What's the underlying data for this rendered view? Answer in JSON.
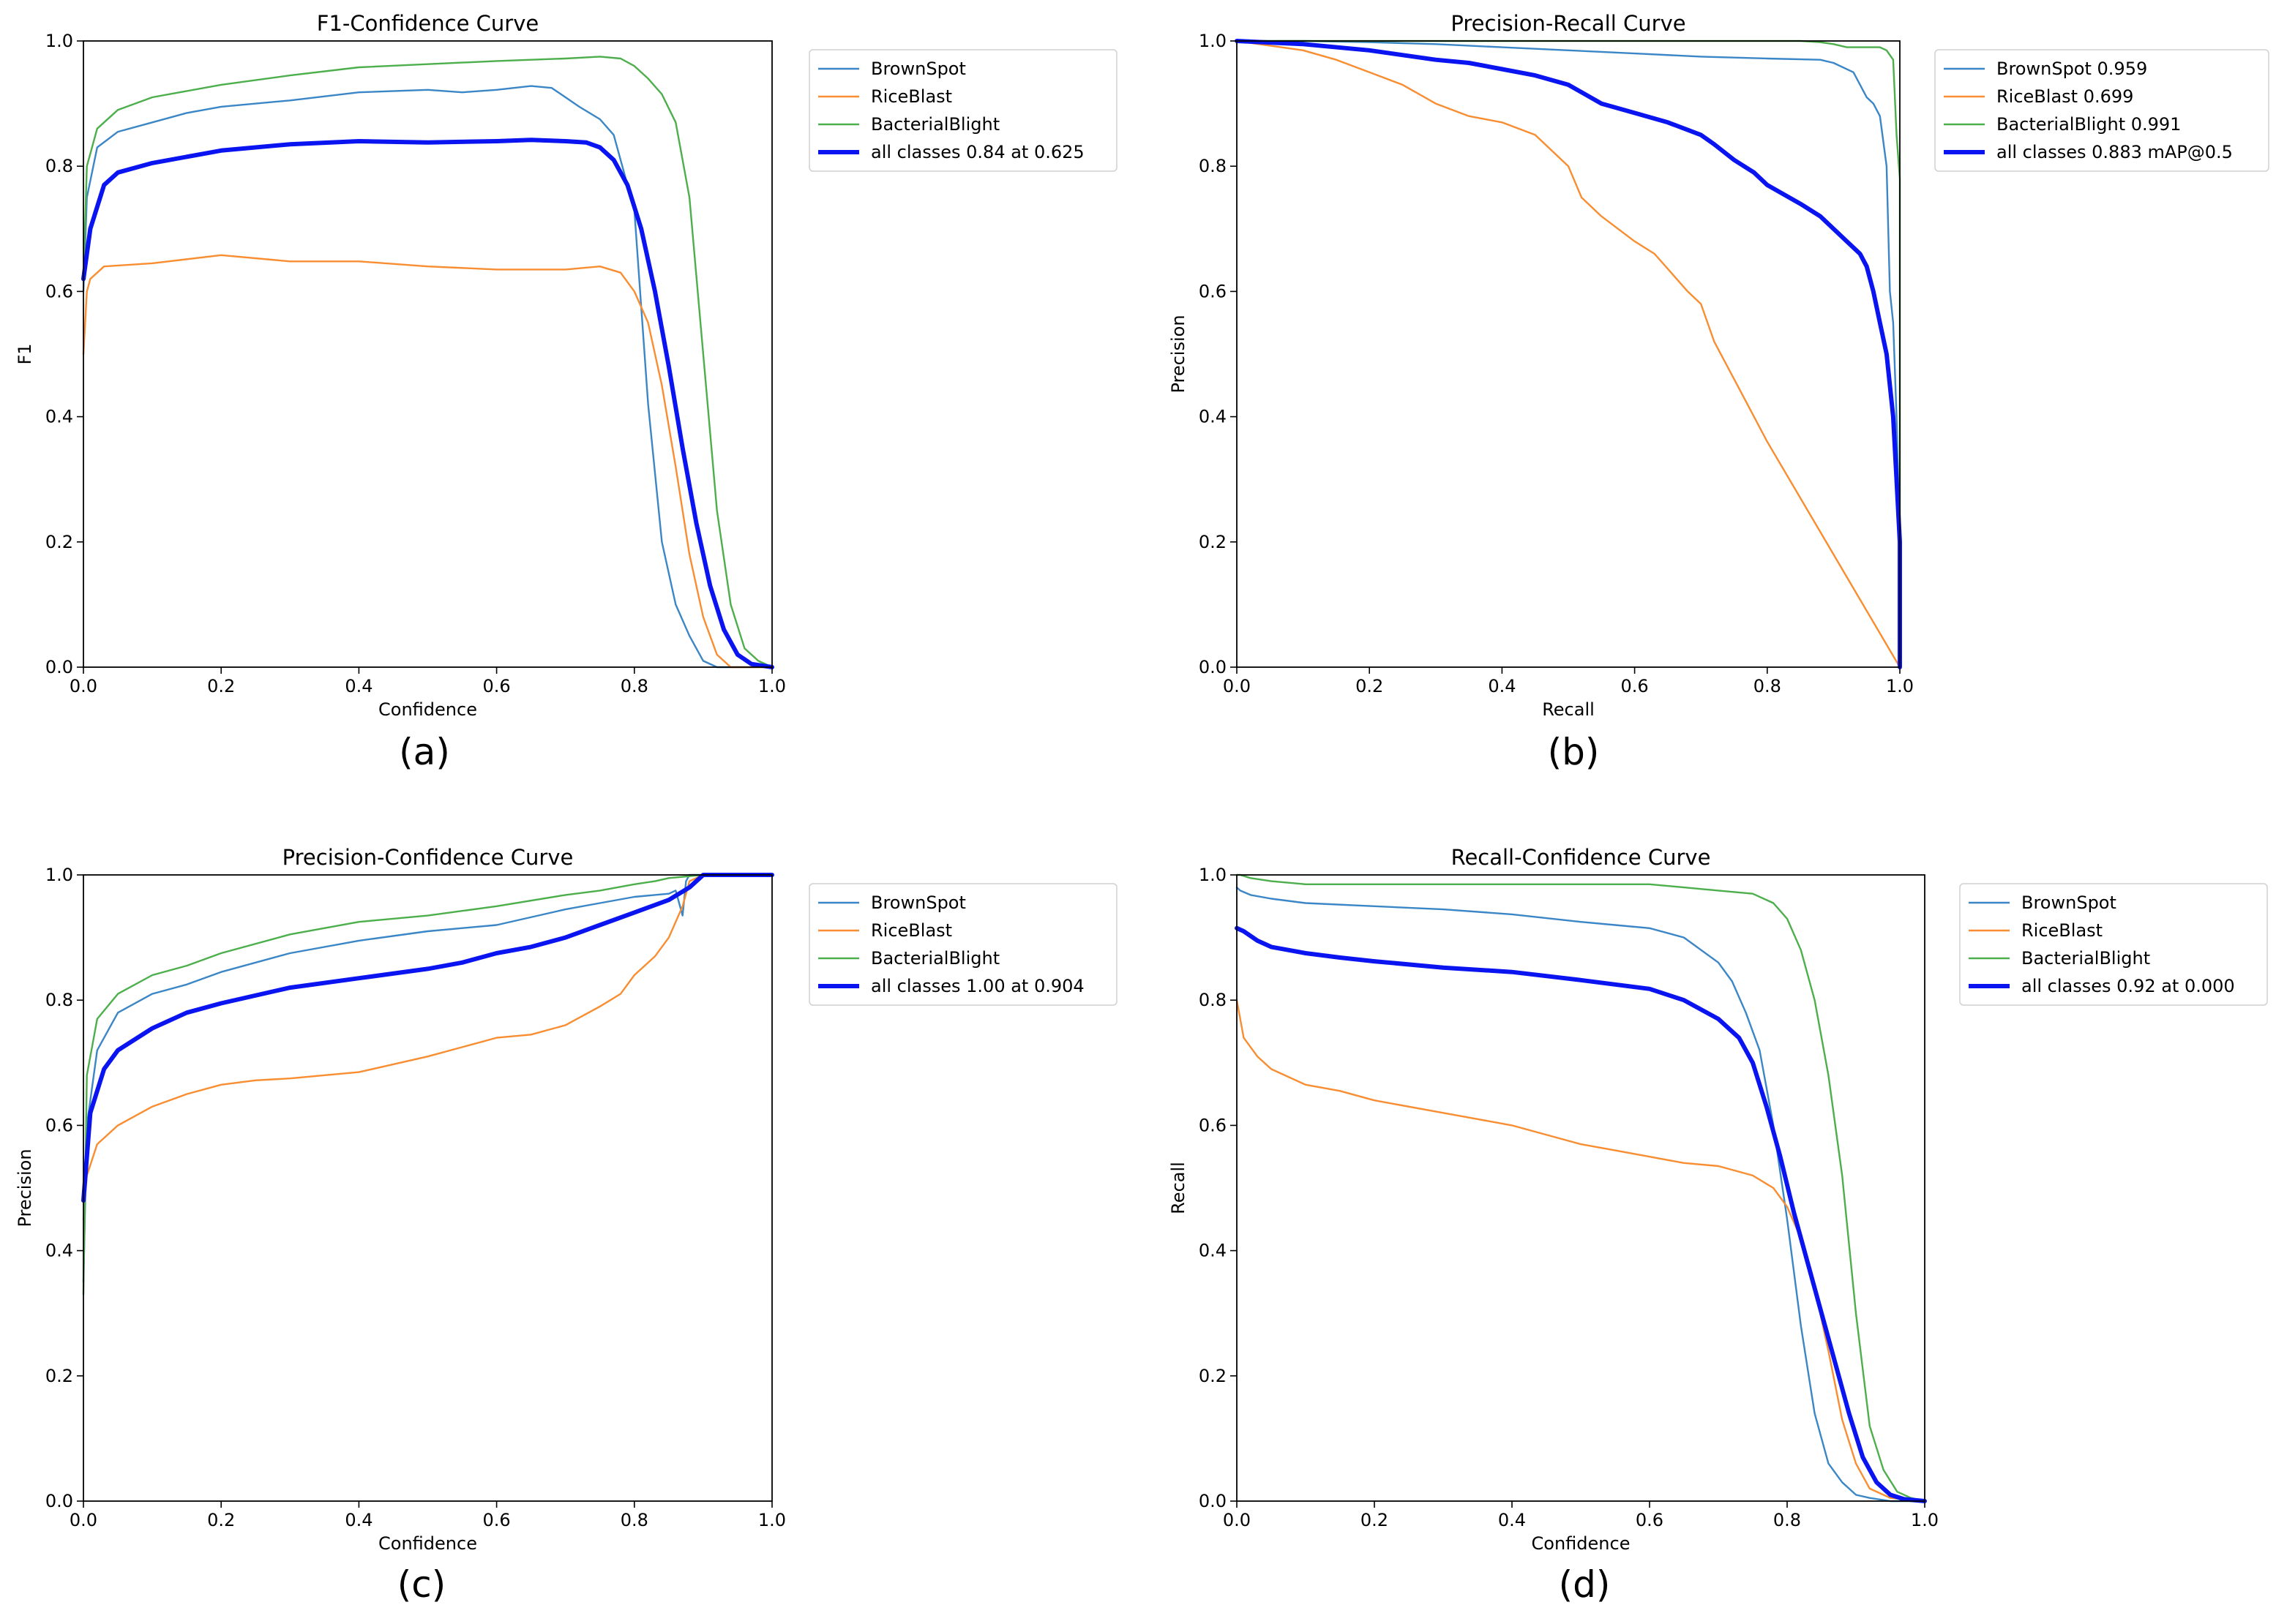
{
  "figure": {
    "legend_prefix": "all classes"
  },
  "colors": {
    "BrownSpot": "#3b86c6",
    "RiceBlast": "#f88d31",
    "BacterialBlight": "#4caf4c",
    "all_classes": "#0a14f0",
    "axis": "#000000"
  },
  "chart_data": [
    {
      "type": "line",
      "panel_label": "(a)",
      "title": "F1-Confidence Curve",
      "xlabel": "Confidence",
      "ylabel": "F1",
      "xlim": [
        0,
        1
      ],
      "ylim": [
        0,
        1
      ],
      "xticks": [
        "0.0",
        "0.2",
        "0.4",
        "0.6",
        "0.8",
        "1.0"
      ],
      "yticks": [
        "0.0",
        "0.2",
        "0.4",
        "0.6",
        "0.8",
        "1.0"
      ],
      "legend_position": "outside-right",
      "series": [
        {
          "name": "BrownSpot",
          "legend": "BrownSpot",
          "color_key": "BrownSpot",
          "x": [
            0,
            0.005,
            0.02,
            0.05,
            0.1,
            0.15,
            0.2,
            0.3,
            0.4,
            0.5,
            0.55,
            0.6,
            0.65,
            0.68,
            0.7,
            0.72,
            0.75,
            0.77,
            0.8,
            0.82,
            0.84,
            0.86,
            0.88,
            0.9,
            0.92,
            0.95,
            1.0
          ],
          "y": [
            0.6,
            0.75,
            0.83,
            0.855,
            0.87,
            0.885,
            0.895,
            0.905,
            0.918,
            0.922,
            0.918,
            0.922,
            0.928,
            0.925,
            0.91,
            0.895,
            0.875,
            0.85,
            0.73,
            0.42,
            0.2,
            0.1,
            0.05,
            0.01,
            0.0,
            0.0,
            0.0
          ]
        },
        {
          "name": "RiceBlast",
          "legend": "RiceBlast",
          "color_key": "RiceBlast",
          "x": [
            0,
            0.005,
            0.01,
            0.03,
            0.1,
            0.2,
            0.3,
            0.4,
            0.5,
            0.6,
            0.7,
            0.75,
            0.78,
            0.8,
            0.82,
            0.84,
            0.86,
            0.88,
            0.9,
            0.92,
            0.94,
            0.95,
            1.0
          ],
          "y": [
            0.5,
            0.6,
            0.62,
            0.64,
            0.645,
            0.658,
            0.648,
            0.648,
            0.64,
            0.635,
            0.635,
            0.64,
            0.63,
            0.6,
            0.55,
            0.45,
            0.32,
            0.18,
            0.08,
            0.02,
            0.0,
            0.0,
            0.0
          ]
        },
        {
          "name": "BacterialBlight",
          "legend": "BacterialBlight",
          "color_key": "BacterialBlight",
          "x": [
            0,
            0.005,
            0.02,
            0.05,
            0.1,
            0.2,
            0.3,
            0.4,
            0.5,
            0.6,
            0.65,
            0.7,
            0.75,
            0.78,
            0.8,
            0.82,
            0.84,
            0.86,
            0.88,
            0.9,
            0.92,
            0.94,
            0.96,
            0.98,
            1.0
          ],
          "y": [
            0.62,
            0.8,
            0.86,
            0.89,
            0.91,
            0.93,
            0.945,
            0.958,
            0.963,
            0.968,
            0.97,
            0.972,
            0.975,
            0.972,
            0.96,
            0.94,
            0.915,
            0.87,
            0.75,
            0.5,
            0.25,
            0.1,
            0.03,
            0.01,
            0.0
          ]
        },
        {
          "name": "all classes",
          "legend": "all classes 0.84 at 0.625",
          "color_key": "all_classes",
          "bold": true,
          "x": [
            0,
            0.01,
            0.03,
            0.05,
            0.1,
            0.2,
            0.3,
            0.4,
            0.5,
            0.6,
            0.65,
            0.7,
            0.73,
            0.75,
            0.77,
            0.79,
            0.81,
            0.83,
            0.85,
            0.87,
            0.89,
            0.91,
            0.93,
            0.95,
            0.97,
            1.0
          ],
          "y": [
            0.62,
            0.7,
            0.77,
            0.79,
            0.805,
            0.825,
            0.835,
            0.84,
            0.838,
            0.84,
            0.842,
            0.84,
            0.838,
            0.83,
            0.81,
            0.77,
            0.7,
            0.6,
            0.48,
            0.35,
            0.23,
            0.13,
            0.06,
            0.02,
            0.005,
            0.0
          ]
        }
      ]
    },
    {
      "type": "line",
      "panel_label": "(b)",
      "title": "Precision-Recall Curve",
      "xlabel": "Recall",
      "ylabel": "Precision",
      "xlim": [
        0,
        1
      ],
      "ylim": [
        0,
        1
      ],
      "xticks": [
        "0.0",
        "0.2",
        "0.4",
        "0.6",
        "0.8",
        "1.0"
      ],
      "yticks": [
        "0.0",
        "0.2",
        "0.4",
        "0.6",
        "0.8",
        "1.0"
      ],
      "legend_position": "outside-right",
      "series": [
        {
          "name": "BrownSpot",
          "legend": "BrownSpot 0.959",
          "color_key": "BrownSpot",
          "x": [
            0,
            0.1,
            0.2,
            0.3,
            0.4,
            0.5,
            0.6,
            0.7,
            0.8,
            0.88,
            0.9,
            0.93,
            0.95,
            0.96,
            0.97,
            0.98,
            0.985,
            0.99,
            0.995,
            1.0,
            1.0
          ],
          "y": [
            1.0,
            1.0,
            0.998,
            0.995,
            0.99,
            0.985,
            0.98,
            0.975,
            0.972,
            0.97,
            0.965,
            0.95,
            0.91,
            0.9,
            0.88,
            0.8,
            0.6,
            0.55,
            0.4,
            0.2,
            0.0
          ]
        },
        {
          "name": "RiceBlast",
          "legend": "RiceBlast 0.699",
          "color_key": "RiceBlast",
          "x": [
            0,
            0.1,
            0.15,
            0.2,
            0.25,
            0.3,
            0.35,
            0.4,
            0.45,
            0.5,
            0.52,
            0.55,
            0.6,
            0.63,
            0.68,
            0.7,
            0.72,
            0.75,
            0.78,
            0.8,
            0.9,
            1.0
          ],
          "y": [
            1.0,
            0.985,
            0.97,
            0.95,
            0.93,
            0.9,
            0.88,
            0.87,
            0.85,
            0.8,
            0.75,
            0.72,
            0.68,
            0.66,
            0.6,
            0.58,
            0.52,
            0.46,
            0.4,
            0.36,
            0.18,
            0.0
          ]
        },
        {
          "name": "BacterialBlight",
          "legend": "BacterialBlight 0.991",
          "color_key": "BacterialBlight",
          "x": [
            0,
            0.2,
            0.4,
            0.6,
            0.8,
            0.85,
            0.88,
            0.9,
            0.92,
            0.95,
            0.97,
            0.98,
            0.99,
            0.995,
            1.0,
            1.0
          ],
          "y": [
            1.0,
            1.0,
            1.0,
            1.0,
            1.0,
            1.0,
            0.998,
            0.995,
            0.99,
            0.99,
            0.99,
            0.985,
            0.97,
            0.85,
            0.78,
            0.0
          ]
        },
        {
          "name": "all classes",
          "legend": "all classes 0.883 mAP@0.5",
          "color_key": "all_classes",
          "bold": true,
          "x": [
            0,
            0.1,
            0.2,
            0.3,
            0.35,
            0.4,
            0.45,
            0.5,
            0.55,
            0.6,
            0.65,
            0.7,
            0.72,
            0.75,
            0.78,
            0.8,
            0.85,
            0.88,
            0.9,
            0.92,
            0.94,
            0.95,
            0.96,
            0.97,
            0.98,
            0.99,
            0.995,
            1.0,
            1.0
          ],
          "y": [
            1.0,
            0.995,
            0.985,
            0.97,
            0.965,
            0.955,
            0.945,
            0.93,
            0.9,
            0.885,
            0.87,
            0.85,
            0.835,
            0.81,
            0.79,
            0.77,
            0.74,
            0.72,
            0.7,
            0.68,
            0.66,
            0.64,
            0.6,
            0.55,
            0.5,
            0.4,
            0.3,
            0.2,
            0.0
          ]
        }
      ]
    },
    {
      "type": "line",
      "panel_label": "(c)",
      "title": "Precision-Confidence Curve",
      "xlabel": "Confidence",
      "ylabel": "Precision",
      "xlim": [
        0,
        1
      ],
      "ylim": [
        0,
        1
      ],
      "xticks": [
        "0.0",
        "0.2",
        "0.4",
        "0.6",
        "0.8",
        "1.0"
      ],
      "yticks": [
        "0.0",
        "0.2",
        "0.4",
        "0.6",
        "0.8",
        "1.0"
      ],
      "legend_position": "outside-right",
      "series": [
        {
          "name": "BrownSpot",
          "legend": "BrownSpot",
          "color_key": "BrownSpot",
          "x": [
            0,
            0.005,
            0.02,
            0.05,
            0.1,
            0.15,
            0.2,
            0.3,
            0.4,
            0.5,
            0.6,
            0.7,
            0.75,
            0.8,
            0.85,
            0.86,
            0.87,
            0.875,
            0.88,
            0.9,
            1.0
          ],
          "y": [
            0.35,
            0.6,
            0.72,
            0.78,
            0.81,
            0.825,
            0.845,
            0.875,
            0.895,
            0.91,
            0.92,
            0.945,
            0.955,
            0.965,
            0.97,
            0.975,
            0.935,
            0.99,
            1.0,
            1.0,
            1.0
          ]
        },
        {
          "name": "RiceBlast",
          "legend": "RiceBlast",
          "color_key": "RiceBlast",
          "x": [
            0,
            0.005,
            0.02,
            0.05,
            0.1,
            0.15,
            0.2,
            0.25,
            0.3,
            0.4,
            0.5,
            0.6,
            0.65,
            0.7,
            0.75,
            0.78,
            0.8,
            0.83,
            0.85,
            0.87,
            0.88,
            0.9,
            1.0
          ],
          "y": [
            0.45,
            0.52,
            0.57,
            0.6,
            0.63,
            0.65,
            0.665,
            0.672,
            0.675,
            0.685,
            0.71,
            0.74,
            0.745,
            0.76,
            0.79,
            0.81,
            0.84,
            0.87,
            0.9,
            0.95,
            0.99,
            1.0,
            1.0
          ]
        },
        {
          "name": "BacterialBlight",
          "legend": "BacterialBlight",
          "color_key": "BacterialBlight",
          "x": [
            0,
            0.005,
            0.02,
            0.05,
            0.1,
            0.15,
            0.2,
            0.3,
            0.4,
            0.5,
            0.6,
            0.7,
            0.75,
            0.8,
            0.83,
            0.85,
            0.9,
            1.0
          ],
          "y": [
            0.33,
            0.68,
            0.77,
            0.81,
            0.84,
            0.855,
            0.875,
            0.905,
            0.925,
            0.935,
            0.95,
            0.968,
            0.975,
            0.985,
            0.99,
            0.995,
            1.0,
            1.0
          ]
        },
        {
          "name": "all classes",
          "legend": "all classes 1.00 at 0.904",
          "color_key": "all_classes",
          "bold": true,
          "x": [
            0,
            0.01,
            0.03,
            0.05,
            0.1,
            0.15,
            0.2,
            0.3,
            0.4,
            0.5,
            0.55,
            0.6,
            0.65,
            0.7,
            0.75,
            0.8,
            0.85,
            0.88,
            0.9,
            0.95,
            1.0
          ],
          "y": [
            0.48,
            0.62,
            0.69,
            0.72,
            0.755,
            0.78,
            0.795,
            0.82,
            0.835,
            0.85,
            0.86,
            0.875,
            0.885,
            0.9,
            0.92,
            0.94,
            0.96,
            0.98,
            1.0,
            1.0,
            1.0
          ]
        }
      ]
    },
    {
      "type": "line",
      "panel_label": "(d)",
      "title": "Recall-Confidence Curve",
      "xlabel": "Confidence",
      "ylabel": "Recall",
      "xlim": [
        0,
        1
      ],
      "ylim": [
        0,
        1
      ],
      "xticks": [
        "0.0",
        "0.2",
        "0.4",
        "0.6",
        "0.8",
        "1.0"
      ],
      "yticks": [
        "0.0",
        "0.2",
        "0.4",
        "0.6",
        "0.8",
        "1.0"
      ],
      "legend_position": "outside-right",
      "series": [
        {
          "name": "BrownSpot",
          "legend": "BrownSpot",
          "color_key": "BrownSpot",
          "x": [
            0,
            0.005,
            0.02,
            0.05,
            0.1,
            0.2,
            0.3,
            0.4,
            0.5,
            0.55,
            0.6,
            0.65,
            0.7,
            0.72,
            0.74,
            0.76,
            0.78,
            0.8,
            0.82,
            0.84,
            0.86,
            0.88,
            0.9,
            0.92,
            0.95,
            1.0
          ],
          "y": [
            0.98,
            0.975,
            0.968,
            0.962,
            0.955,
            0.95,
            0.945,
            0.937,
            0.925,
            0.92,
            0.915,
            0.9,
            0.86,
            0.83,
            0.78,
            0.72,
            0.6,
            0.45,
            0.28,
            0.14,
            0.06,
            0.03,
            0.01,
            0.005,
            0.0,
            0.0
          ]
        },
        {
          "name": "RiceBlast",
          "legend": "RiceBlast",
          "color_key": "RiceBlast",
          "x": [
            0,
            0.005,
            0.01,
            0.03,
            0.05,
            0.1,
            0.15,
            0.2,
            0.3,
            0.4,
            0.5,
            0.55,
            0.6,
            0.65,
            0.7,
            0.75,
            0.78,
            0.8,
            0.82,
            0.84,
            0.86,
            0.88,
            0.9,
            0.92,
            0.95,
            1.0
          ],
          "y": [
            0.8,
            0.77,
            0.74,
            0.71,
            0.69,
            0.665,
            0.655,
            0.64,
            0.62,
            0.6,
            0.57,
            0.56,
            0.55,
            0.54,
            0.535,
            0.52,
            0.5,
            0.47,
            0.42,
            0.34,
            0.24,
            0.13,
            0.06,
            0.02,
            0.005,
            0.0
          ]
        },
        {
          "name": "BacterialBlight",
          "legend": "BacterialBlight",
          "color_key": "BacterialBlight",
          "x": [
            0,
            0.005,
            0.02,
            0.05,
            0.1,
            0.2,
            0.3,
            0.4,
            0.5,
            0.6,
            0.65,
            0.7,
            0.75,
            0.78,
            0.8,
            0.82,
            0.84,
            0.86,
            0.88,
            0.9,
            0.92,
            0.94,
            0.96,
            0.98,
            1.0
          ],
          "y": [
            1.0,
            1.0,
            0.995,
            0.99,
            0.985,
            0.985,
            0.985,
            0.985,
            0.985,
            0.985,
            0.98,
            0.975,
            0.97,
            0.955,
            0.93,
            0.88,
            0.8,
            0.68,
            0.52,
            0.3,
            0.12,
            0.05,
            0.015,
            0.005,
            0.0
          ]
        },
        {
          "name": "all classes",
          "legend": "all classes 0.92 at 0.000",
          "color_key": "all_classes",
          "bold": true,
          "x": [
            0,
            0.01,
            0.03,
            0.05,
            0.1,
            0.15,
            0.2,
            0.3,
            0.4,
            0.5,
            0.55,
            0.6,
            0.65,
            0.7,
            0.73,
            0.75,
            0.77,
            0.79,
            0.81,
            0.83,
            0.85,
            0.87,
            0.89,
            0.91,
            0.93,
            0.95,
            0.97,
            1.0
          ],
          "y": [
            0.915,
            0.91,
            0.895,
            0.885,
            0.875,
            0.868,
            0.862,
            0.852,
            0.845,
            0.832,
            0.825,
            0.818,
            0.8,
            0.77,
            0.74,
            0.7,
            0.63,
            0.55,
            0.46,
            0.38,
            0.3,
            0.22,
            0.14,
            0.07,
            0.03,
            0.01,
            0.003,
            0.0
          ]
        }
      ]
    }
  ]
}
